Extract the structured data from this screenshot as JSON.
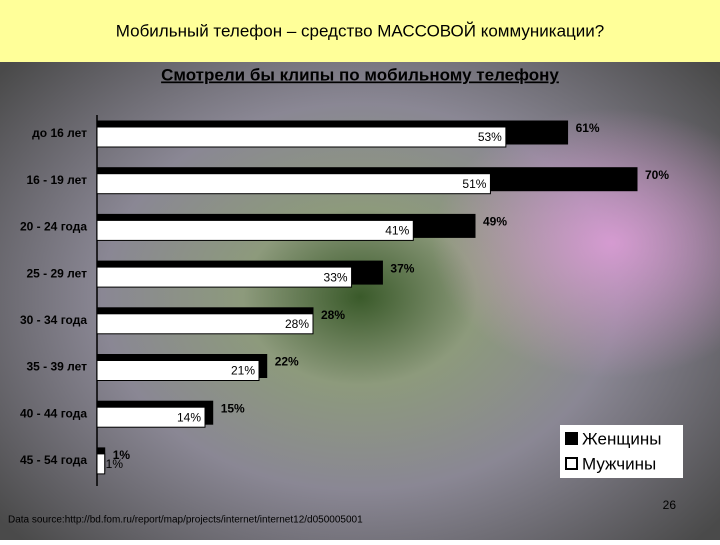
{
  "header": {
    "title": "Мобильный телефон – средство МАССОВОЙ коммуникации?"
  },
  "chart_data": {
    "type": "hbar",
    "title": "Смотрели бы клипы по мобильному телефону",
    "categories": [
      "до 16 лет",
      "16 - 19 лет",
      "20 - 24 года",
      "25 - 29 лет",
      "30 - 34 года",
      "35 - 39 лет",
      "40 - 44 года",
      "45 - 54 года"
    ],
    "series": [
      {
        "name": "Женщины",
        "color": "#000000",
        "values": [
          61,
          70,
          49,
          37,
          28,
          22,
          15,
          1
        ],
        "value_labels": [
          "61%",
          "70%",
          "49%",
          "37%",
          "28%",
          "22%",
          "15%",
          "1%"
        ]
      },
      {
        "name": "Мужчины",
        "color": "#ffffff",
        "values": [
          53,
          51,
          41,
          33,
          28,
          21,
          14,
          1
        ],
        "value_labels": [
          "53%",
          "51%",
          "41%",
          "33%",
          "28%",
          "21%",
          "14%",
          "1%"
        ]
      }
    ],
    "xlim": [
      0,
      70
    ],
    "legend": "lower right"
  },
  "footer": {
    "source": "Data source:http://bd.fom.ru/report/map/projects/internet/internet12/d050005001",
    "page": "26"
  }
}
